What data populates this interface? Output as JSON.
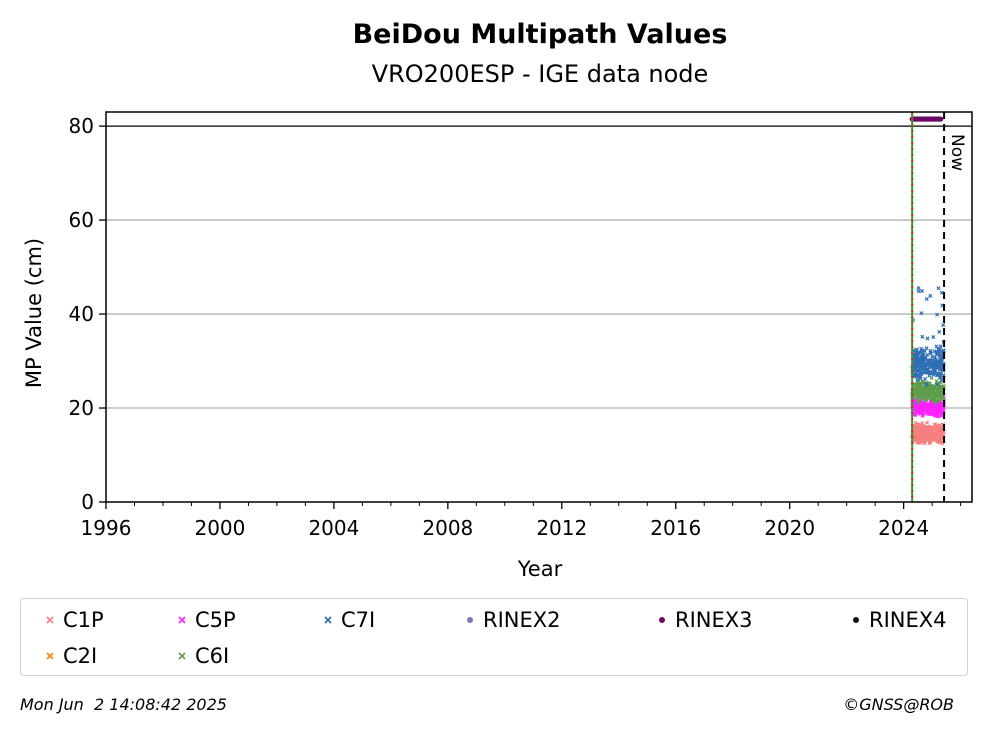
{
  "chart_data": {
    "type": "scatter",
    "title": "BeiDou Multipath Values",
    "subtitle": "VRO200ESP - IGE data node",
    "xlabel": "Year",
    "ylabel": "MP Value (cm)",
    "xlim": [
      1996,
      2026.4
    ],
    "ylim": [
      0,
      83
    ],
    "xticks": [
      "1996",
      "2000",
      "2004",
      "2008",
      "2012",
      "2016",
      "2020",
      "2024"
    ],
    "yticks": [
      "0",
      "20",
      "40",
      "60",
      "80"
    ],
    "grid": "horizontal",
    "reference_line_y": 80,
    "start_line_year": 2024.3,
    "now_line_year": 2025.42,
    "now_label": "Now",
    "series": [
      {
        "name": "C1P",
        "color": "#f77f7f",
        "marker": "x",
        "x_range": [
          2024.3,
          2025.42
        ],
        "y_center": 14.5,
        "y_spread": 1.8,
        "y_min": 12.5,
        "y_max": 17
      },
      {
        "name": "C2I",
        "color": "#ff7f0e",
        "marker": "x",
        "x_range": [
          2024.3,
          2025.42
        ],
        "y_center": null,
        "y_spread": null,
        "y_min": null,
        "y_max": null
      },
      {
        "name": "C5P",
        "color": "#ff22ff",
        "marker": "x",
        "x_range": [
          2024.3,
          2025.42
        ],
        "y_center": 20,
        "y_spread": 1.6,
        "y_min": 17,
        "y_max": 23
      },
      {
        "name": "C6I",
        "color": "#5e9e4a",
        "marker": "x",
        "x_range": [
          2024.3,
          2025.42
        ],
        "y_center": 23.5,
        "y_spread": 1.8,
        "y_min": 20,
        "y_max": 28
      },
      {
        "name": "C7I",
        "color": "#2e6fb5",
        "marker": "x",
        "x_range": [
          2024.3,
          2025.42
        ],
        "y_center": 29.5,
        "y_spread": 3.2,
        "y_min": 22,
        "y_max": 46
      },
      {
        "name": "RINEX2",
        "color": "#7b7ab8",
        "marker": "dot",
        "x_range": null,
        "y_value": null
      },
      {
        "name": "RINEX3",
        "color": "#6a0a6a",
        "marker": "dot",
        "x_range": [
          2024.3,
          2025.3
        ],
        "y_value": 81.5
      },
      {
        "name": "RINEX4",
        "color": "#1a0a1a",
        "marker": "dot",
        "x_range": null,
        "y_value": null
      }
    ]
  },
  "legend_order": [
    "C1P",
    "C5P",
    "C7I",
    "RINEX2",
    "RINEX3",
    "RINEX4",
    "C2I",
    "C6I"
  ],
  "footer": {
    "timestamp": "Mon Jun  2 14:08:42 2025",
    "credit": "©GNSS@ROB"
  }
}
